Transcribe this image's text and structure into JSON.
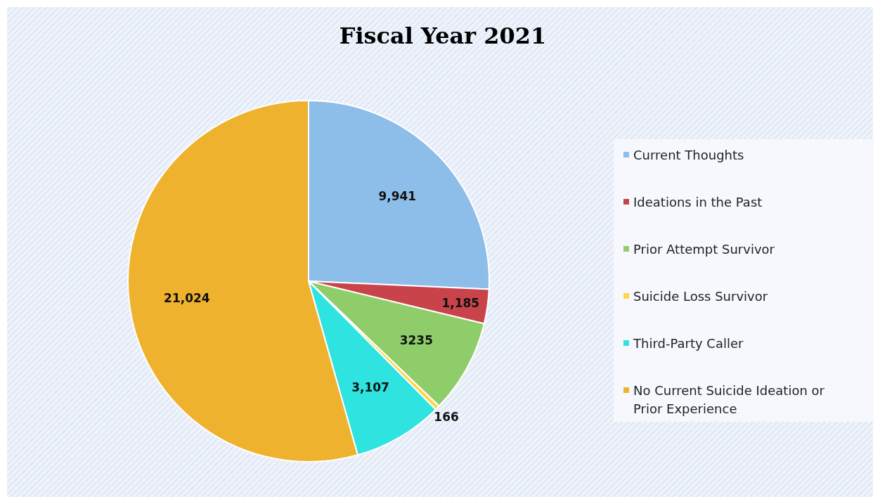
{
  "chart_data": {
    "type": "pie",
    "title": "Fiscal Year 2021",
    "categories": [
      "Current Thoughts",
      "Ideations in the Past",
      "Prior Attempt Survivor",
      "Suicide Loss Survivor",
      "Third-Party Caller",
      "No Current Suicide Ideation or Prior Experience"
    ],
    "values": [
      9941,
      1185,
      3235,
      166,
      3107,
      21024
    ],
    "colors": [
      "#8dbde9",
      "#c9434a",
      "#8fcd6a",
      "#ffd54d",
      "#2ee3e0",
      "#eeb22e"
    ],
    "value_labels": [
      "9,941",
      "1,185",
      "3235",
      "166",
      "3,107",
      "21,024"
    ],
    "legend": "right"
  }
}
